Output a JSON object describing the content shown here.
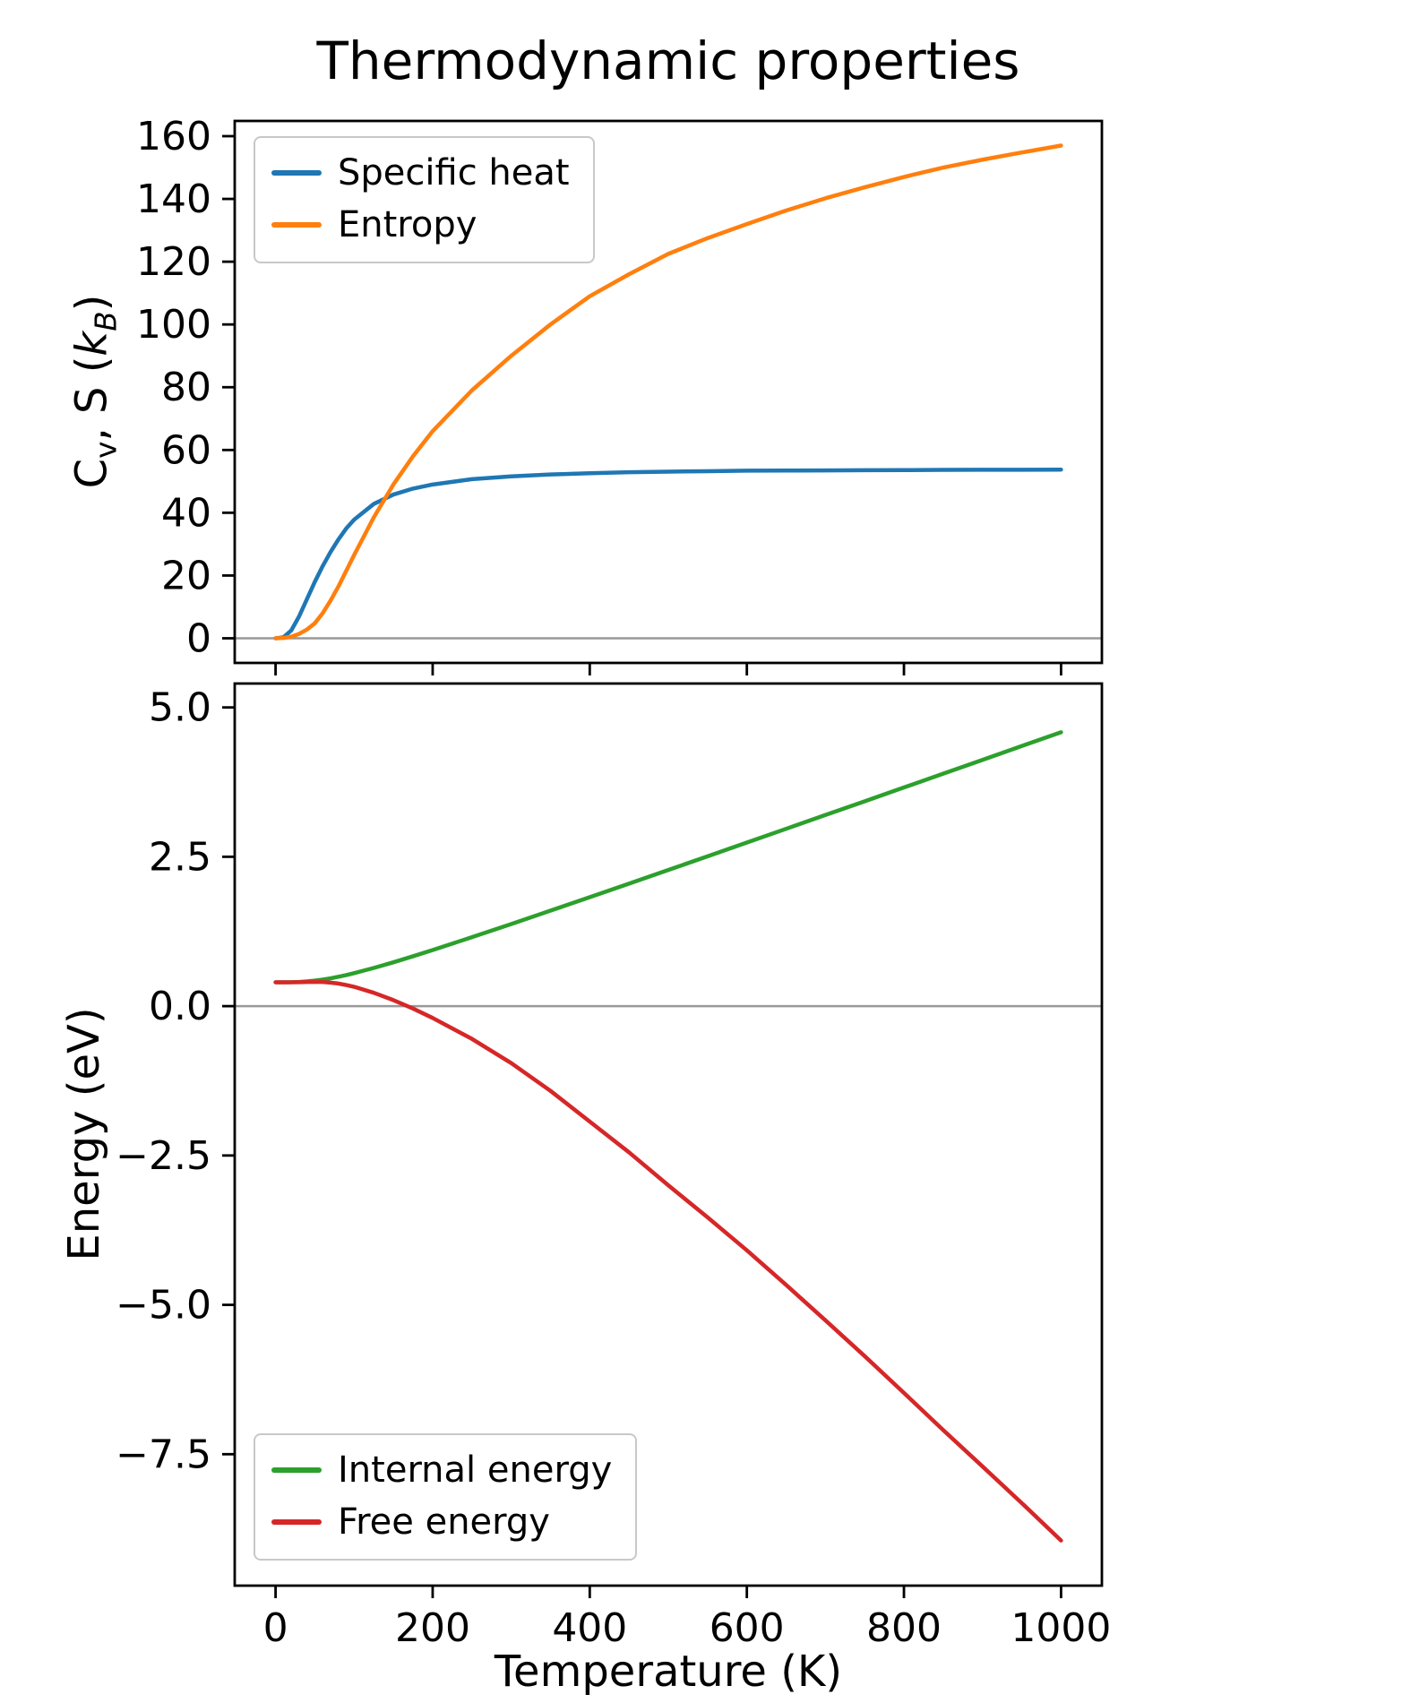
{
  "title": "Thermodynamic properties",
  "labels": {
    "ylabel_top_c": "C",
    "ylabel_top_v": "v",
    "ylabel_top_mid": ", S (",
    "ylabel_top_k": "k",
    "ylabel_top_b": "B",
    "ylabel_top_end": ")",
    "ylabel_bottom": "Energy (eV)",
    "xlabel": "Temperature (K)"
  },
  "chart_data": [
    {
      "type": "line",
      "title": "Thermodynamic properties",
      "ylabel": "Cv, S (kB)",
      "xlabel": "",
      "legend_position": "upper-left",
      "grid": false,
      "zero_line": true,
      "xlim": [
        -52,
        1052
      ],
      "ylim": [
        -7.85,
        164.85
      ],
      "xticks": [
        0,
        200,
        400,
        600,
        800,
        1000
      ],
      "xtick_labels": [
        "0",
        "200",
        "400",
        "600",
        "800",
        "1000"
      ],
      "yticks": [
        0,
        20,
        40,
        60,
        80,
        100,
        120,
        140,
        160
      ],
      "ytick_labels": [
        "0",
        "20",
        "40",
        "60",
        "80",
        "100",
        "120",
        "140",
        "160"
      ],
      "x": [
        0,
        10,
        20,
        30,
        40,
        50,
        60,
        70,
        80,
        90,
        100,
        125,
        150,
        175,
        200,
        250,
        300,
        350,
        400,
        450,
        500,
        550,
        600,
        650,
        700,
        750,
        800,
        850,
        900,
        950,
        1000
      ],
      "series": [
        {
          "name": "Specific heat",
          "color": "#1f77b4",
          "values": [
            0,
            0.3,
            2.5,
            7,
            12.5,
            18,
            23,
            27.5,
            31.5,
            35,
            37.8,
            42.8,
            45.8,
            47.7,
            49.0,
            50.7,
            51.6,
            52.2,
            52.6,
            52.9,
            53.1,
            53.25,
            53.4,
            53.45,
            53.5,
            53.55,
            53.6,
            53.65,
            53.7,
            53.7,
            53.75
          ]
        },
        {
          "name": "Entropy",
          "color": "#ff7f0e",
          "values": [
            0,
            0.1,
            0.5,
            1.4,
            2.8,
            4.8,
            8,
            12,
            16.5,
            21.5,
            26.5,
            38.5,
            49,
            58,
            66,
            79,
            90,
            100,
            109,
            116,
            122.5,
            127.5,
            132,
            136.3,
            140.2,
            143.7,
            147,
            150,
            152.5,
            154.8,
            157
          ]
        }
      ]
    },
    {
      "type": "line",
      "title": "",
      "ylabel": "Energy (eV)",
      "xlabel": "Temperature (K)",
      "legend_position": "lower-left",
      "grid": false,
      "zero_line": true,
      "xlim": [
        -52,
        1052
      ],
      "ylim": [
        -9.7,
        5.4
      ],
      "xticks": [
        0,
        200,
        400,
        600,
        800,
        1000
      ],
      "xtick_labels": [
        "0",
        "200",
        "400",
        "600",
        "800",
        "1000"
      ],
      "yticks": [
        5.0,
        2.5,
        0.0,
        -2.5,
        -5.0,
        -7.5
      ],
      "ytick_labels": [
        "5.0",
        "2.5",
        "0.0",
        "−2.5",
        "−5.0",
        "−7.5"
      ],
      "x": [
        0,
        10,
        20,
        30,
        40,
        50,
        60,
        70,
        80,
        90,
        100,
        125,
        150,
        175,
        200,
        250,
        300,
        350,
        400,
        450,
        500,
        550,
        600,
        650,
        700,
        750,
        800,
        850,
        900,
        950,
        1000
      ],
      "series": [
        {
          "name": "Internal energy",
          "color": "#2ca02c",
          "values": [
            0.4,
            0.4,
            0.401,
            0.405,
            0.414,
            0.427,
            0.445,
            0.466,
            0.492,
            0.52,
            0.552,
            0.639,
            0.734,
            0.835,
            0.939,
            1.154,
            1.374,
            1.598,
            1.824,
            2.051,
            2.279,
            2.508,
            2.738,
            2.968,
            3.199,
            3.429,
            3.66,
            3.891,
            4.122,
            4.354,
            4.585
          ]
        },
        {
          "name": "Free energy",
          "color": "#d62728",
          "values": [
            0.4,
            0.4,
            0.4,
            0.401,
            0.404,
            0.406,
            0.404,
            0.394,
            0.378,
            0.353,
            0.324,
            0.224,
            0.101,
            -0.04,
            -0.198,
            -0.548,
            -0.953,
            -1.418,
            -1.933,
            -2.447,
            -2.999,
            -3.535,
            -4.087,
            -4.667,
            -5.258,
            -5.858,
            -6.474,
            -7.096,
            -7.705,
            -8.318,
            -8.944
          ]
        }
      ]
    }
  ]
}
